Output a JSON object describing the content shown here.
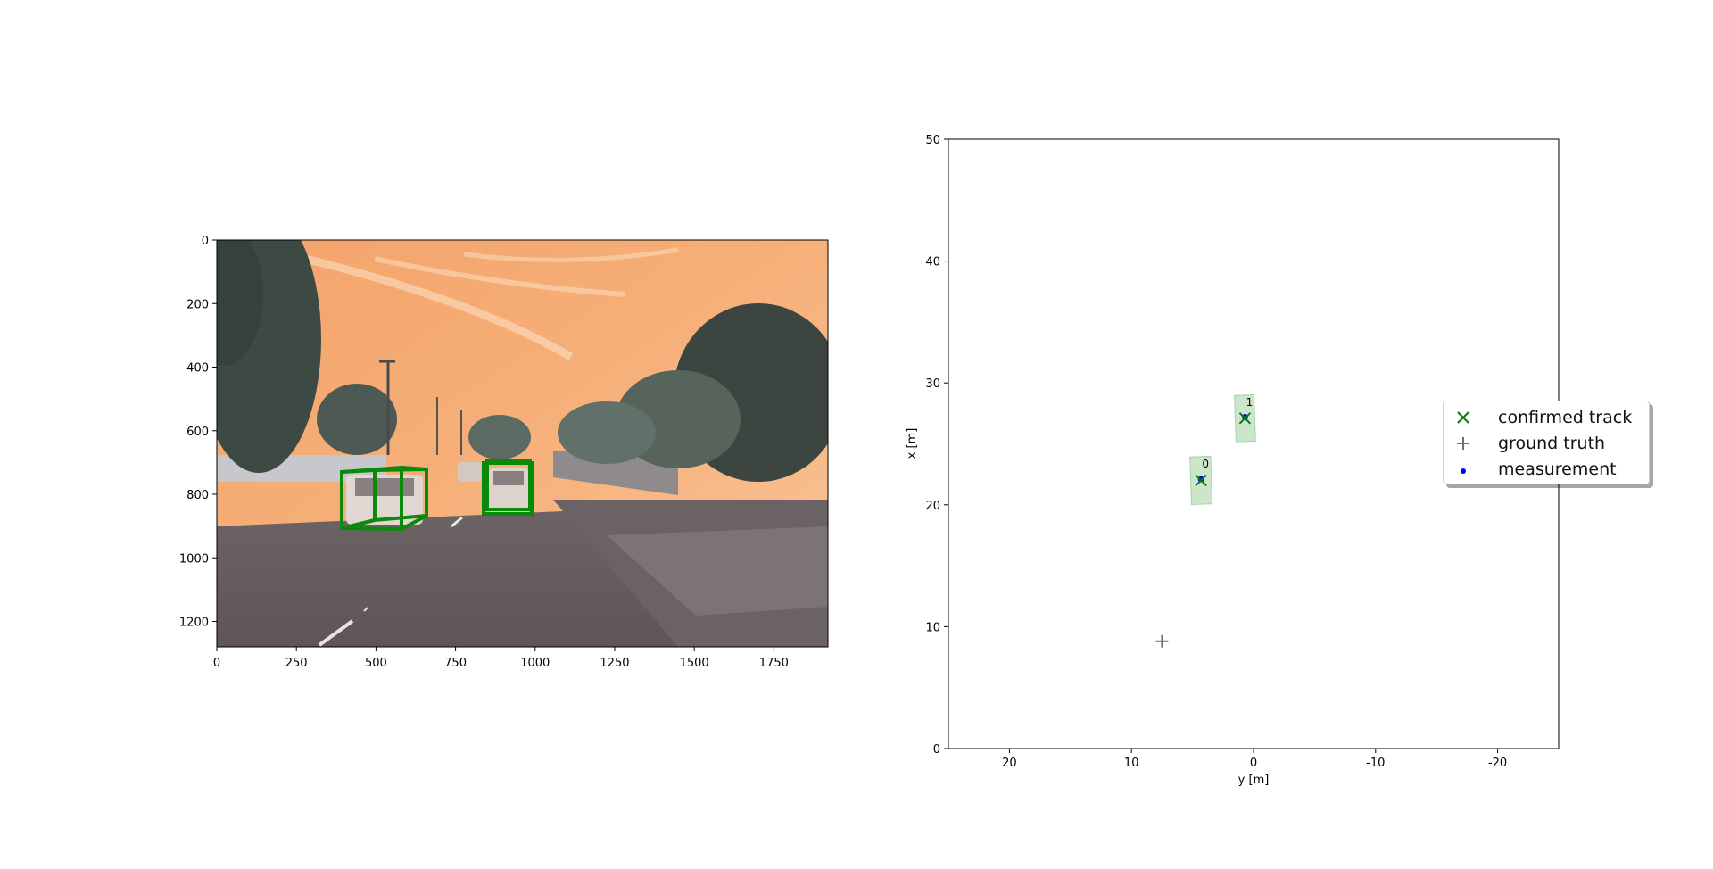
{
  "chart_data": [
    {
      "type": "image",
      "description_free": true,
      "xlim": [
        0,
        1920
      ],
      "ylim": [
        1280,
        0
      ],
      "xticks": [
        "0",
        "250",
        "500",
        "750",
        "1000",
        "1250",
        "1500",
        "1750"
      ],
      "xtick_values": [
        0,
        250,
        500,
        750,
        1000,
        1250,
        1500,
        1750
      ],
      "yticks": [
        "0",
        "200",
        "400",
        "600",
        "800",
        "1000",
        "1200"
      ],
      "ytick_values": [
        0,
        200,
        400,
        600,
        800,
        1000,
        1200
      ],
      "boxes_color": "#0a8a0a"
    },
    {
      "type": "scatter",
      "xlabel": "y [m]",
      "ylabel": "x [m]",
      "xlim": [
        25,
        -25
      ],
      "ylim": [
        0,
        50
      ],
      "xticks": [
        "20",
        "10",
        "0",
        "-10",
        "-20"
      ],
      "xtick_values": [
        20,
        10,
        0,
        -10,
        -20
      ],
      "yticks": [
        "0",
        "10",
        "20",
        "30",
        "40",
        "50"
      ],
      "ytick_values": [
        0,
        10,
        20,
        30,
        40,
        50
      ],
      "tracks": [
        {
          "id": "0",
          "y": 4.3,
          "x": 22.0,
          "width": 1.7,
          "length": 3.9
        },
        {
          "id": "1",
          "y": 0.7,
          "x": 27.1,
          "width": 1.6,
          "length": 3.8
        }
      ],
      "measurements": [
        {
          "y": 4.3,
          "x": 22.1
        },
        {
          "y": 0.7,
          "x": 27.2
        }
      ],
      "ground_truth": [
        {
          "y": 7.5,
          "x": 8.8
        }
      ],
      "legend": [
        "confirmed track",
        "ground truth",
        "measurement"
      ],
      "colors": {
        "track": "#0a7a0a",
        "truth": "#707070",
        "measurement": "#0000ff",
        "box_fill": "#a8d5a8"
      }
    }
  ]
}
